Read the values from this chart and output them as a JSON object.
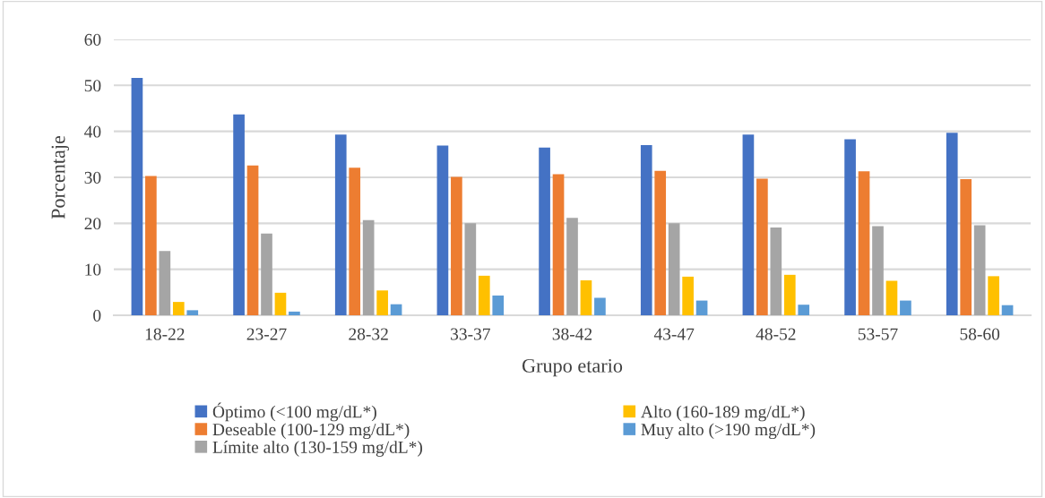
{
  "chart_data": {
    "type": "bar",
    "xlabel": "Grupo etario",
    "ylabel": "Porcentaje",
    "categories": [
      "18-22",
      "23-27",
      "28-32",
      "33-37",
      "38-42",
      "43-47",
      "48-52",
      "53-57",
      "58-60"
    ],
    "series": [
      {
        "name": "Óptimo (<100 mg/dL*)",
        "color": "#4472c4",
        "values": [
          51.6,
          43.7,
          39.3,
          36.9,
          36.5,
          37.0,
          39.3,
          38.3,
          39.7
        ]
      },
      {
        "name": "Deseable (100-129 mg/dL*)",
        "color": "#ed7d31",
        "values": [
          30.3,
          32.6,
          32.1,
          30.1,
          30.7,
          31.4,
          29.7,
          31.3,
          29.6
        ]
      },
      {
        "name": "Límite alto (130-159 mg/dL*)",
        "color": "#a5a5a5",
        "values": [
          14.0,
          17.8,
          20.7,
          20.0,
          21.2,
          20.0,
          19.1,
          19.4,
          19.6
        ]
      },
      {
        "name": "Alto (160-189 mg/dL*)",
        "color": "#ffc000",
        "values": [
          2.9,
          4.9,
          5.4,
          8.6,
          7.6,
          8.4,
          8.8,
          7.5,
          8.5
        ]
      },
      {
        "name": "Muy alto (>190 mg/dL*)",
        "color": "#5b9bd5",
        "values": [
          1.1,
          0.8,
          2.4,
          4.3,
          3.8,
          3.2,
          2.3,
          3.2,
          2.2
        ]
      }
    ],
    "ylim": [
      0,
      60
    ],
    "yticks": [
      0,
      10,
      20,
      30,
      40,
      50,
      60
    ],
    "grid": "y",
    "legend": "bottom"
  }
}
